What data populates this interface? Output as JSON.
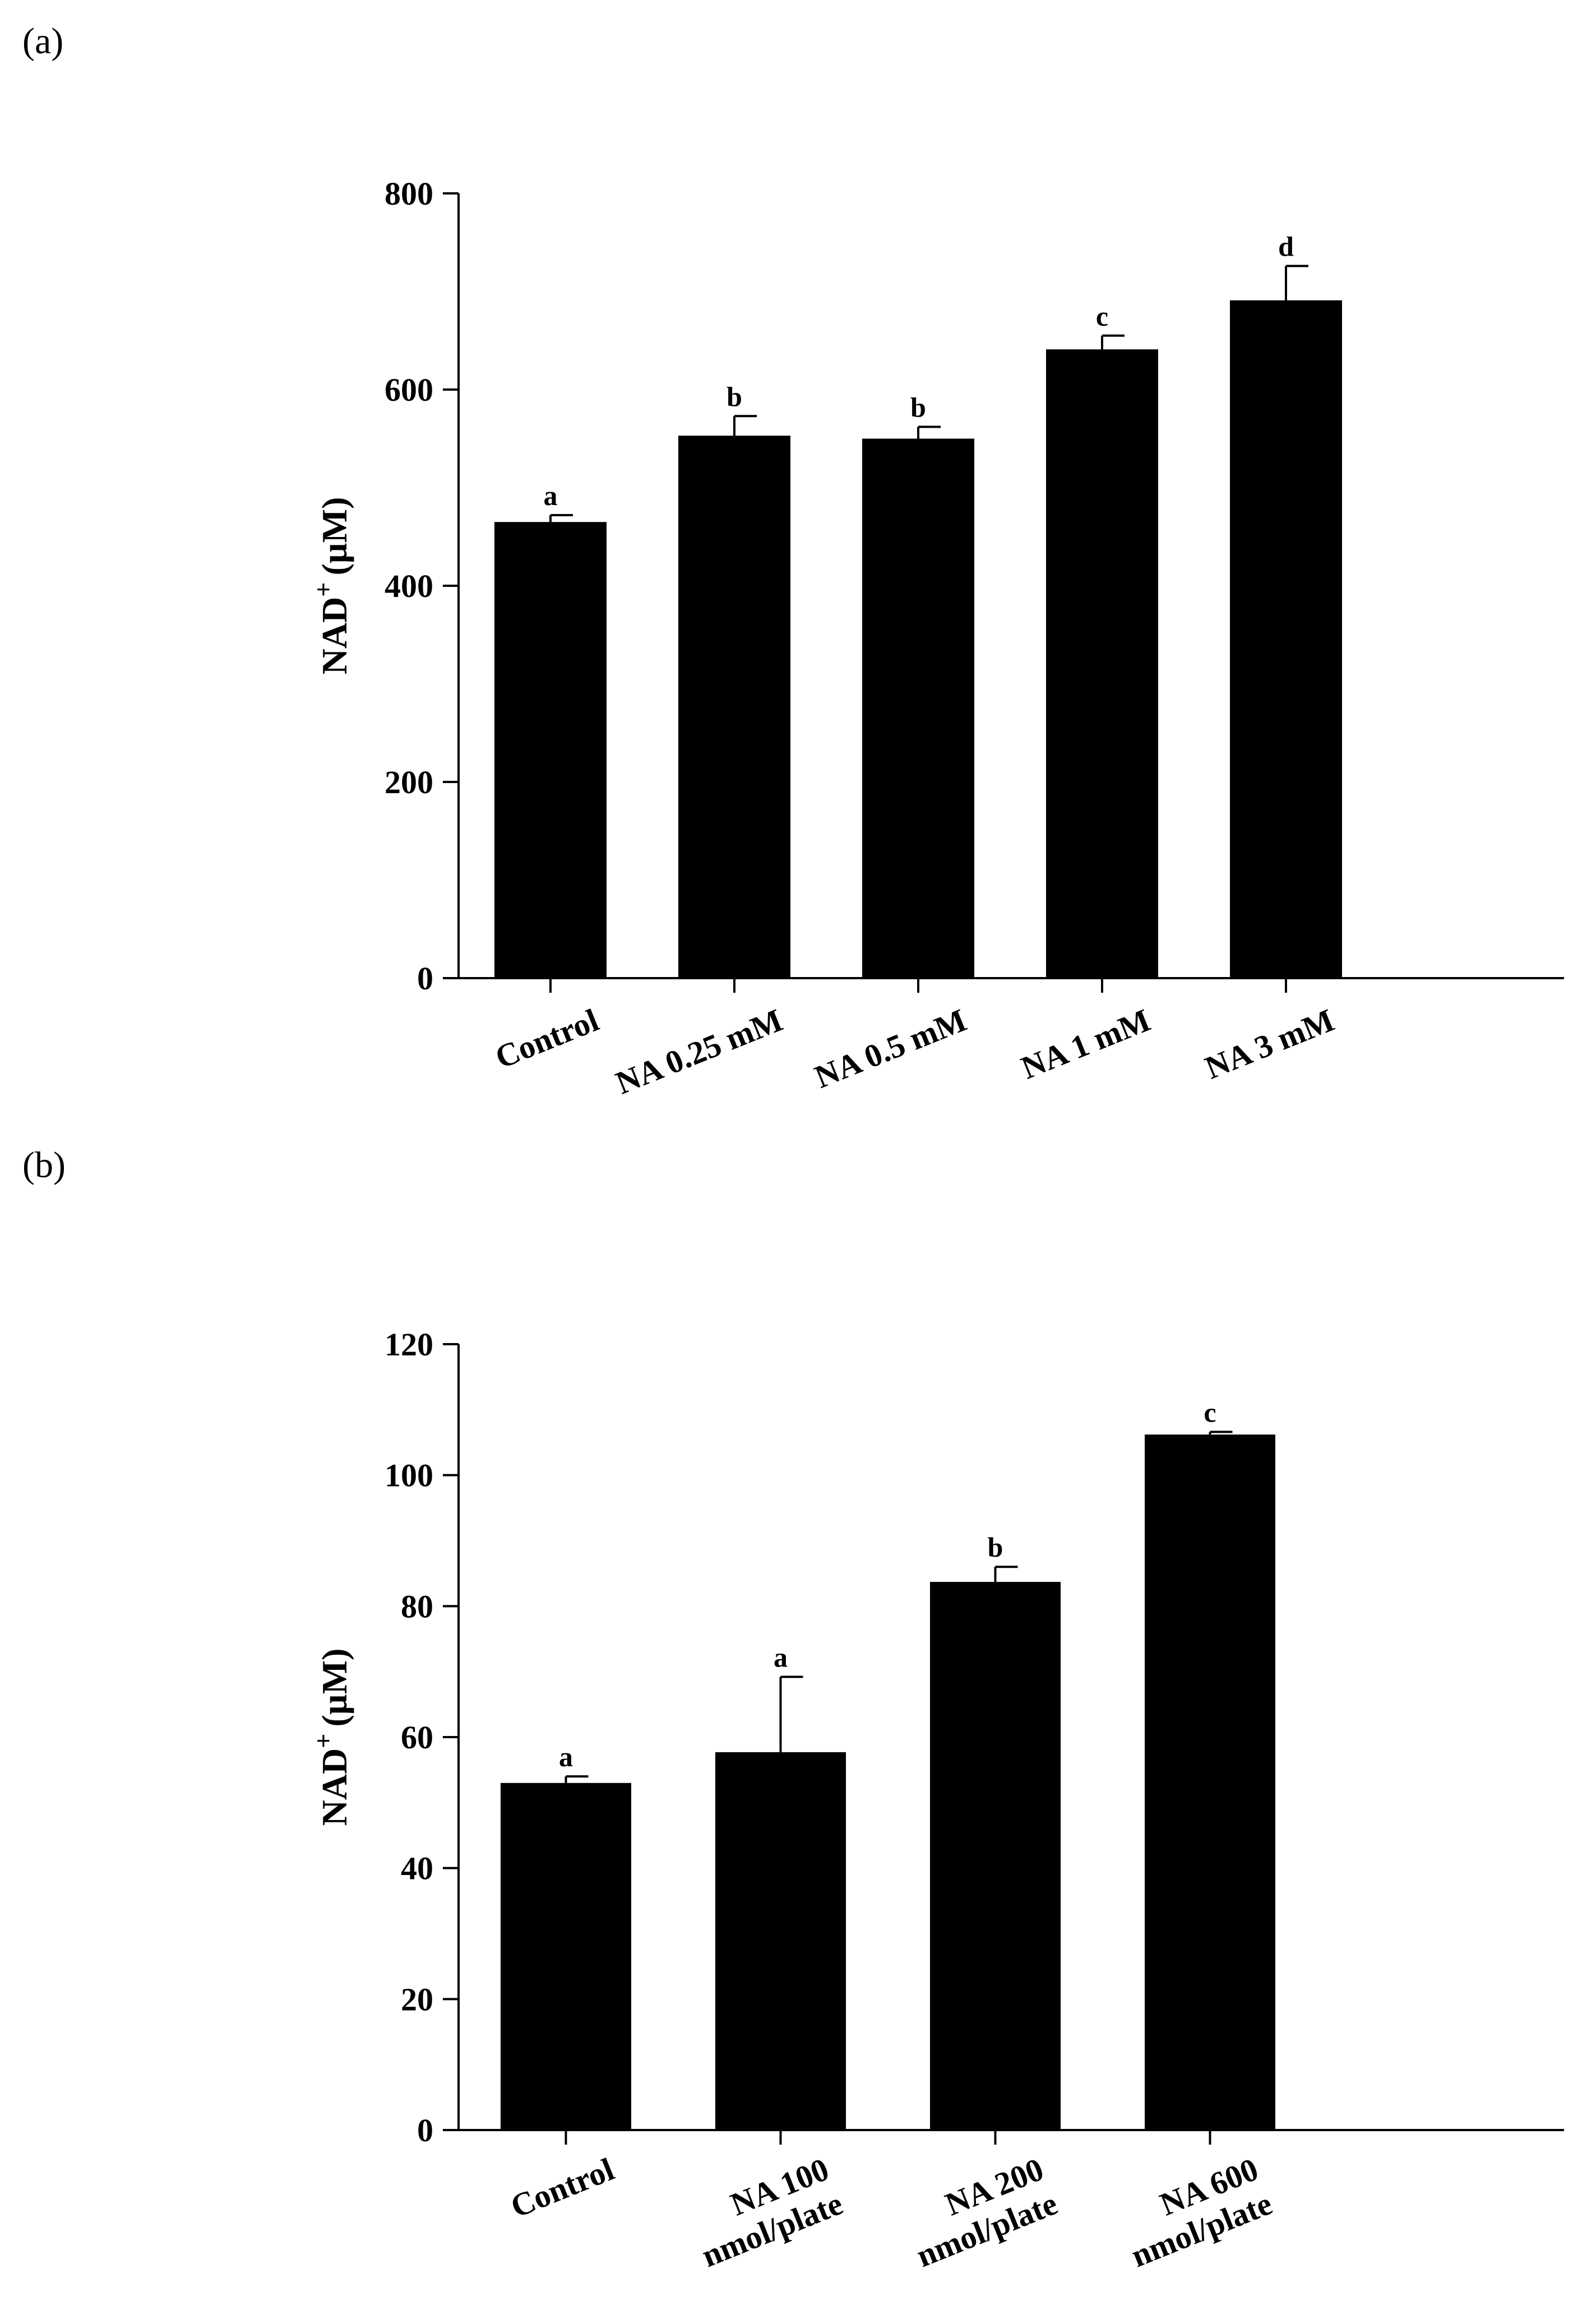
{
  "chart_data": [
    {
      "panel_label": "(a)",
      "type": "bar",
      "ylabel": "NAD",
      "ylabel_superscript": "+",
      "ylabel_unit": "(µM)",
      "ylim": [
        0,
        800
      ],
      "yticks": [
        "0",
        "200",
        "400",
        "600",
        "800"
      ],
      "grid": false,
      "bar_color": "#000000",
      "categories": [
        [
          "Control"
        ],
        [
          "NA 0.25 mM"
        ],
        [
          "NA 0.5 mM"
        ],
        [
          "NA 1 mM"
        ],
        [
          "NA 3 mM"
        ]
      ],
      "values": [
        465,
        553,
        550,
        641,
        691
      ],
      "errors": [
        7,
        20,
        12,
        14,
        35
      ],
      "significance": [
        "a",
        "b",
        "b",
        "c",
        "d"
      ]
    },
    {
      "panel_label": "(b)",
      "type": "bar",
      "ylabel": "NAD",
      "ylabel_superscript": "+",
      "ylabel_unit": "(µM)",
      "ylim": [
        0,
        120
      ],
      "yticks": [
        "0",
        "20",
        "40",
        "60",
        "80",
        "100",
        "120"
      ],
      "grid": false,
      "bar_color": "#000000",
      "categories": [
        [
          "Control"
        ],
        [
          "NA 100",
          "nmol/plate"
        ],
        [
          "NA 200",
          "nmol/plate"
        ],
        [
          "NA 600",
          "nmol/plate"
        ]
      ],
      "values": [
        53,
        57.7,
        83.7,
        106.2
      ],
      "errors": [
        1,
        11.5,
        2.3,
        0.4
      ],
      "significance": [
        "a",
        "a",
        "b",
        "c"
      ]
    }
  ]
}
